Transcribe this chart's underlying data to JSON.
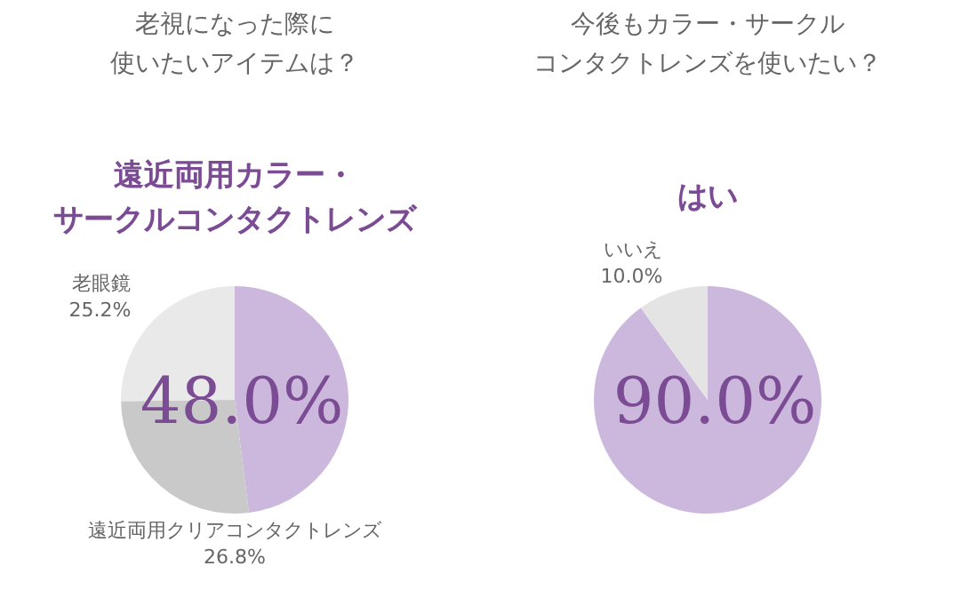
{
  "chart_data": [
    {
      "type": "pie",
      "title": [
        "老視になった際に",
        "使いたいアイテムは？"
      ],
      "categories": [
        "遠近両用カラー・サークルコンタクトレンズ",
        "遠近両用クリアコンタクトレンズ",
        "老眼鏡"
      ],
      "values": [
        48.0,
        26.8,
        25.2
      ],
      "colors": [
        "#cbb8dc",
        "#c9c9c9",
        "#e9e9e9"
      ],
      "value_labels": [
        "48.0%",
        "26.8%",
        "25.2%"
      ]
    },
    {
      "type": "pie",
      "title": [
        "今後もカラー・サークル",
        "コンタクトレンズを使いたい？"
      ],
      "categories": [
        "はい",
        "いいえ"
      ],
      "values": [
        90.0,
        10.0
      ],
      "colors": [
        "#cbb8dc",
        "#e4e4e4"
      ],
      "value_labels": [
        "90.0%",
        "10.0%"
      ]
    }
  ]
}
